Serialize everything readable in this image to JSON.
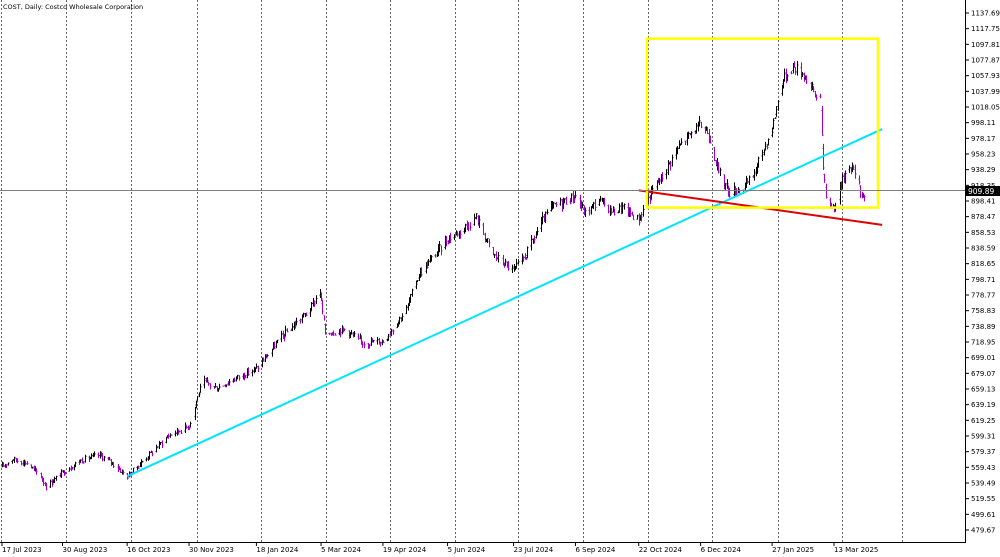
{
  "header": {
    "symbol_label": "COST, Daily:  Costco Wholesale Corporation"
  },
  "price_marker": {
    "value_label": "909.89",
    "value": 909.89
  },
  "colors": {
    "background": "#ffffff",
    "grid": "#000000",
    "bar_up": "#000000",
    "bar_down": "#a000c8",
    "trendline_support": "#00e5ff",
    "trendline_lower": "#e00000",
    "highlight_box": "#ffff00",
    "price_marker_bg": "#000000",
    "price_marker_text": "#ffffff"
  },
  "chart_data": {
    "type": "ohlc",
    "title": "COST, Daily:  Costco Wholesale Corporation",
    "grid": true,
    "ylim": [
      469.77,
      1147.59
    ],
    "x_tick_labels": [
      "17 Jul 2023",
      "30 Aug 2023",
      "16 Oct 2023",
      "30 Nov 2023",
      "18 Jan 2024",
      "5 Mar 2024",
      "19 Apr 2024",
      "5 Jun 2024",
      "23 Jul 2024",
      "6 Sep 2024",
      "22 Oct 2024",
      "6 Dec 2024",
      "27 Jan 2025",
      "13 Mar 2025"
    ],
    "y_tick_labels": [
      1137.69,
      1117.75,
      1097.81,
      1077.87,
      1057.93,
      1037.99,
      1018.05,
      998.11,
      978.17,
      958.23,
      938.29,
      918.35,
      898.41,
      878.47,
      858.53,
      838.59,
      818.65,
      798.71,
      778.77,
      758.83,
      738.89,
      718.95,
      699.01,
      679.07,
      659.13,
      639.19,
      619.25,
      599.31,
      579.37,
      559.43,
      539.49,
      519.55,
      499.61,
      479.67
    ],
    "price_path": [
      [
        "17 Jul 2023",
        560
      ],
      [
        "24 Jul 2023",
        570
      ],
      [
        "4 Aug 2023",
        565
      ],
      [
        "14 Aug 2023",
        548
      ],
      [
        "18 Aug 2023",
        535
      ],
      [
        "30 Aug 2023",
        553
      ],
      [
        "12 Sep 2023",
        568
      ],
      [
        "26 Sep 2023",
        575
      ],
      [
        "5 Oct 2023",
        565
      ],
      [
        "16 Oct 2023",
        548
      ],
      [
        "30 Oct 2023",
        572
      ],
      [
        "15 Nov 2023",
        600
      ],
      [
        "30 Nov 2023",
        612
      ],
      [
        "7 Dec 2023",
        655
      ],
      [
        "11 Dec 2023",
        668
      ],
      [
        "20 Dec 2023",
        660
      ],
      [
        "2 Jan 2024",
        672
      ],
      [
        "18 Jan 2024",
        685
      ],
      [
        "5 Feb 2024",
        725
      ],
      [
        "26 Feb 2024",
        760
      ],
      [
        "4 Mar 2024",
        785
      ],
      [
        "8 Mar 2024",
        730
      ],
      [
        "22 Mar 2024",
        735
      ],
      [
        "4 Apr 2024",
        718
      ],
      [
        "19 Apr 2024",
        720
      ],
      [
        "6 May 2024",
        760
      ],
      [
        "15 May 2024",
        805
      ],
      [
        "5 Jun 2024",
        850
      ],
      [
        "14 Jun 2024",
        860
      ],
      [
        "26 Jun 2024",
        878
      ],
      [
        "8 Jul 2024",
        830
      ],
      [
        "23 Jul 2024",
        810
      ],
      [
        "1 Aug 2024",
        830
      ],
      [
        "12 Aug 2024",
        870
      ],
      [
        "19 Aug 2024",
        890
      ],
      [
        "6 Sep 2024",
        905
      ],
      [
        "13 Sep 2024",
        882
      ],
      [
        "23 Sep 2024",
        900
      ],
      [
        "3 Oct 2024",
        885
      ],
      [
        "10 Oct 2024",
        890
      ],
      [
        "22 Oct 2024",
        875
      ],
      [
        "1 Nov 2024",
        912
      ],
      [
        "8 Nov 2024",
        930
      ],
      [
        "19 Nov 2024",
        965
      ],
      [
        "29 Nov 2024",
        985
      ],
      [
        "6 Dec 2024",
        995
      ],
      [
        "12 Dec 2024",
        985
      ],
      [
        "19 Dec 2024",
        935
      ],
      [
        "27 Dec 2024",
        910
      ],
      [
        "6 Jan 2025",
        915
      ],
      [
        "13 Jan 2025",
        930
      ],
      [
        "27 Jan 2025",
        990
      ],
      [
        "3 Feb 2025",
        1050
      ],
      [
        "11 Feb 2025",
        1070
      ],
      [
        "19 Feb 2025",
        1060
      ],
      [
        "24 Feb 2025",
        1045
      ],
      [
        "28 Feb 2025",
        1030
      ],
      [
        "3 Mar 2025",
        1035
      ],
      [
        "5 Mar 2025",
        940
      ],
      [
        "7 Mar 2025",
        900
      ],
      [
        "13 Mar 2025",
        890
      ],
      [
        "18 Mar 2025",
        920
      ],
      [
        "24 Mar 2025",
        945
      ],
      [
        "28 Mar 2025",
        935
      ],
      [
        "1 Apr 2025",
        910
      ],
      [
        "4 Apr 2025",
        905
      ]
    ],
    "annotations": [
      {
        "type": "trendline",
        "name": "support",
        "from": [
          "16 Oct 2023",
          548
        ],
        "to": [
          "17 Apr 2025",
          990
        ]
      },
      {
        "type": "trendline",
        "name": "lower",
        "from": [
          "22 Oct 2024",
          912
        ],
        "to": [
          "17 Apr 2025",
          868
        ]
      },
      {
        "type": "rectangle",
        "name": "highlight",
        "from": [
          "28 Oct 2024",
          1105
        ],
        "to": [
          "14 Apr 2025",
          890
        ]
      }
    ]
  }
}
